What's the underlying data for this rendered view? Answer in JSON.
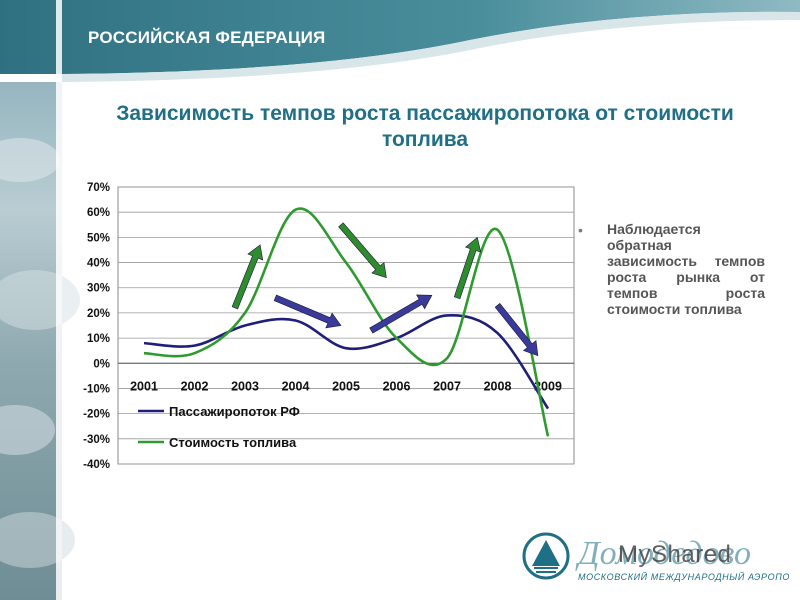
{
  "header": {
    "title": "РОССИЙСКАЯ ФЕДЕРАЦИЯ"
  },
  "slide": {
    "title_line1": "Зависимость темпов роста пассажиропотока от стоимости",
    "title_line2": "топлива"
  },
  "note": {
    "bullet": "•",
    "text": "Наблюдается обратная зависимость темпов роста рынка от темпов роста стоимости топлива"
  },
  "logo": {
    "brand": "Домодедово",
    "subtitle": "МОСКОВСКИЙ МЕЖДУНАРОДНЫЙ АЭРОПОРТ"
  },
  "watermark": "MyShared",
  "colors": {
    "header_band": "#3f8493",
    "title": "#1f6f86",
    "passenger_line": "#1f1f7a",
    "fuel_line": "#2f9a2f",
    "arrow_green": "#2e8b2e",
    "arrow_blue": "#3a3a9a"
  },
  "chart_data": {
    "type": "line",
    "categories": [
      "2001",
      "2002",
      "2003",
      "2004",
      "2005",
      "2006",
      "2007",
      "2008",
      "2009"
    ],
    "series": [
      {
        "name": "Пассажиропоток РФ",
        "values": [
          8,
          7,
          15,
          17,
          6,
          10,
          19,
          12,
          -18
        ],
        "color": "#1f1f7a"
      },
      {
        "name": "Стоимость топлива",
        "values": [
          4,
          4,
          20,
          61,
          40,
          10,
          2,
          53,
          -29
        ],
        "color": "#2f9a2f"
      }
    ],
    "ylim": [
      -40,
      70
    ],
    "yticks": [
      -40,
      -30,
      -20,
      -10,
      0,
      10,
      20,
      30,
      40,
      50,
      60,
      70
    ],
    "ytick_labels": [
      "-40%",
      "-30%",
      "-20%",
      "-10%",
      "0%",
      "10%",
      "20%",
      "30%",
      "40%",
      "50%",
      "60%",
      "70%"
    ],
    "grid": true,
    "legend": "bottom-left",
    "annotations": [
      {
        "type": "arrow",
        "color": "green",
        "from": [
          2002.8,
          22
        ],
        "to": [
          2003.3,
          47
        ]
      },
      {
        "type": "arrow",
        "color": "blue",
        "from": [
          2003.6,
          26
        ],
        "to": [
          2004.9,
          15
        ]
      },
      {
        "type": "arrow",
        "color": "green",
        "from": [
          2004.9,
          55
        ],
        "to": [
          2005.8,
          34
        ]
      },
      {
        "type": "arrow",
        "color": "blue",
        "from": [
          2005.5,
          13
        ],
        "to": [
          2006.7,
          27
        ]
      },
      {
        "type": "arrow",
        "color": "green",
        "from": [
          2007.2,
          26
        ],
        "to": [
          2007.6,
          50
        ]
      },
      {
        "type": "arrow",
        "color": "blue",
        "from": [
          2008.0,
          23
        ],
        "to": [
          2008.8,
          3
        ]
      }
    ]
  }
}
